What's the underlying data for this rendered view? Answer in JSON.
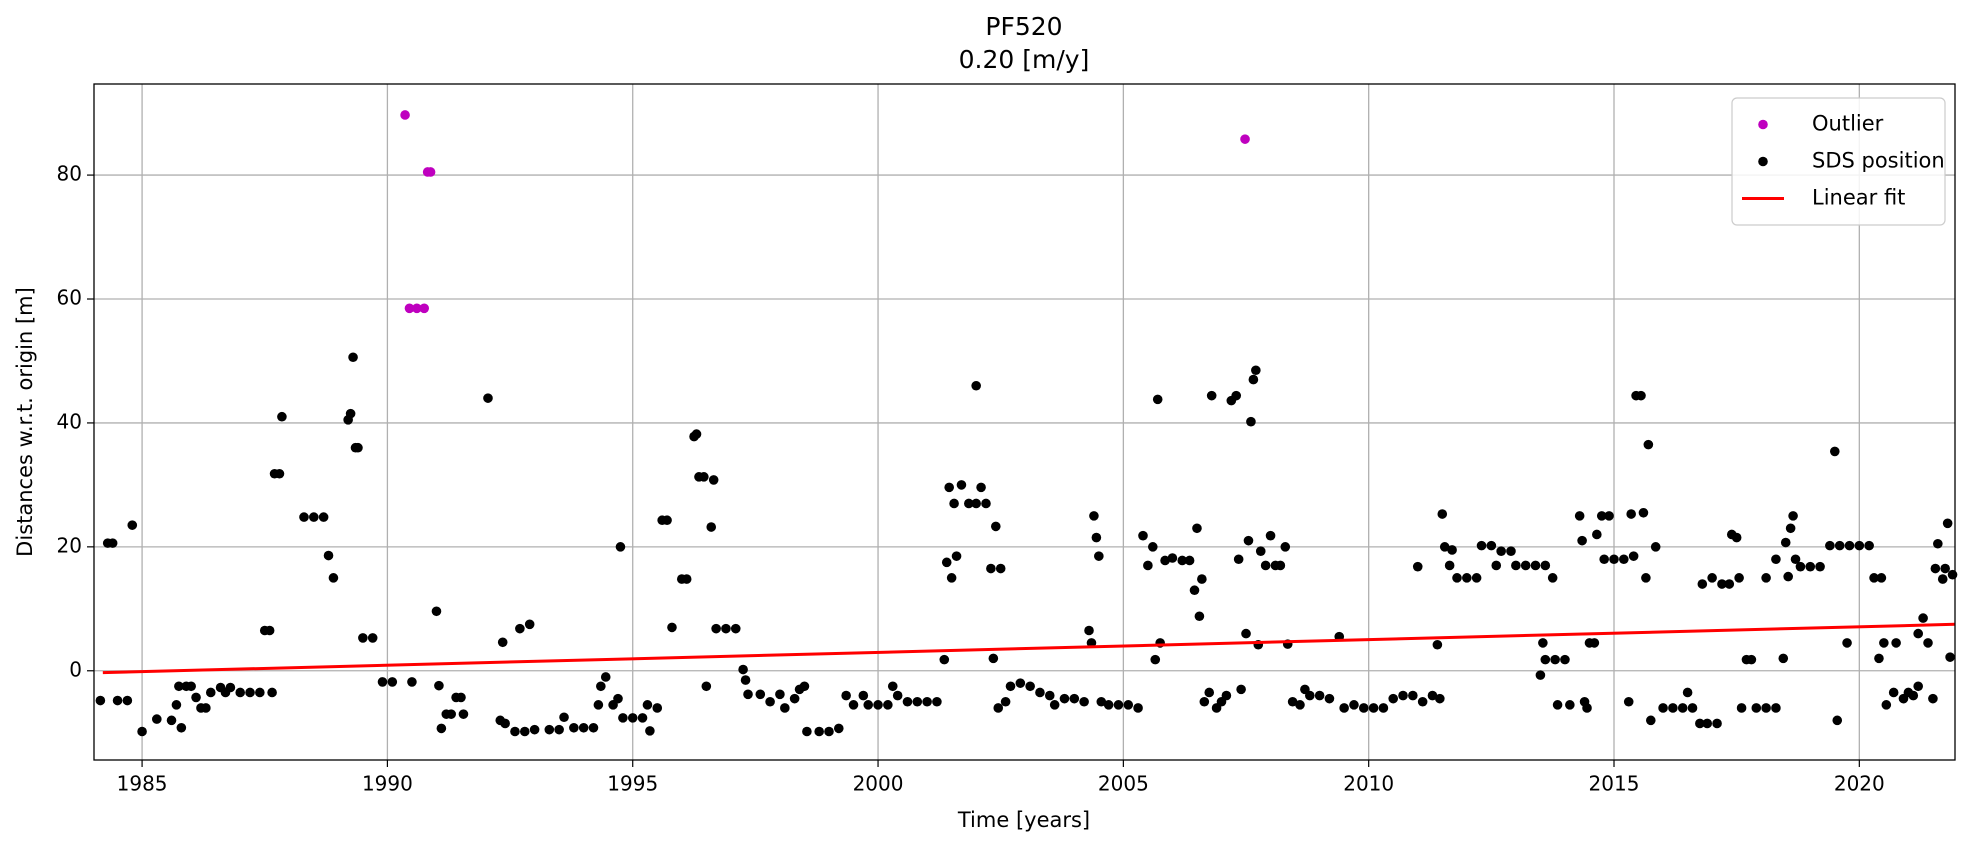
{
  "chart_data": {
    "type": "scatter",
    "title": "PF520",
    "subtitle": "0.20 [m/y]",
    "x_label": "Time [years]",
    "y_label": "Distances w.r.t. origin [m]",
    "xlim": [
      1984.02,
      2021.95
    ],
    "ylim": [
      -14.4,
      94.7
    ],
    "xticks": [
      1985,
      1990,
      1995,
      2000,
      2005,
      2010,
      2015,
      2020
    ],
    "yticks": [
      0,
      20,
      40,
      60,
      80
    ],
    "grid": true,
    "legend": "upper right",
    "series": [
      {
        "name": "Outlier",
        "color": "#bf00bf",
        "mode": "markers",
        "x": [
          1990.36,
          1990.45,
          1990.6,
          1990.75,
          1990.82,
          1990.88,
          2007.48
        ],
        "values": [
          89.7,
          58.5,
          58.5,
          58.5,
          80.5,
          80.5,
          85.8
        ]
      },
      {
        "name": "SDS position",
        "color": "#000000",
        "mode": "markers",
        "x": [
          1984.15,
          1984.3,
          1984.4,
          1984.5,
          1984.7,
          1984.8,
          1985.0,
          1985.3,
          1985.6,
          1985.7,
          1985.75,
          1985.8,
          1985.9,
          1986.0,
          1986.1,
          1986.2,
          1986.3,
          1986.4,
          1986.6,
          1986.7,
          1986.8,
          1987.0,
          1987.2,
          1987.4,
          1987.5,
          1987.6,
          1987.65,
          1987.7,
          1987.8,
          1987.85,
          1988.3,
          1988.5,
          1988.7,
          1988.8,
          1988.9,
          1989.2,
          1989.25,
          1989.3,
          1989.35,
          1989.4,
          1989.5,
          1989.7,
          1989.9,
          1990.1,
          1990.5,
          1991.0,
          1991.05,
          1991.1,
          1991.2,
          1991.3,
          1991.4,
          1991.5,
          1991.55,
          1992.05,
          1992.3,
          1992.35,
          1992.4,
          1992.6,
          1992.7,
          1992.8,
          1992.9,
          1993.0,
          1993.3,
          1993.5,
          1993.6,
          1993.8,
          1994.0,
          1994.2,
          1994.3,
          1994.35,
          1994.45,
          1994.6,
          1994.7,
          1994.75,
          1994.8,
          1995.0,
          1995.2,
          1995.3,
          1995.35,
          1995.5,
          1995.6,
          1995.7,
          1995.8,
          1996.0,
          1996.1,
          1996.25,
          1996.3,
          1996.35,
          1996.45,
          1996.5,
          1996.6,
          1996.65,
          1996.7,
          1996.9,
          1997.1,
          1997.25,
          1997.3,
          1997.35,
          1997.6,
          1997.8,
          1998.0,
          1998.1,
          1998.3,
          1998.4,
          1998.5,
          1998.55,
          1998.8,
          1999.0,
          1999.2,
          1999.35,
          1999.5,
          1999.7,
          1999.8,
          2000.0,
          2000.2,
          2000.3,
          2000.4,
          2000.6,
          2000.8,
          2001.0,
          2001.2,
          2001.35,
          2001.4,
          2001.45,
          2001.5,
          2001.55,
          2001.6,
          2001.7,
          2001.85,
          2002.0,
          2002.0,
          2002.1,
          2002.2,
          2002.3,
          2002.35,
          2002.4,
          2002.45,
          2002.5,
          2002.6,
          2002.7,
          2002.9,
          2003.1,
          2003.3,
          2003.5,
          2003.6,
          2003.8,
          2004.0,
          2004.2,
          2004.3,
          2004.35,
          2004.4,
          2004.45,
          2004.5,
          2004.55,
          2004.7,
          2004.9,
          2005.1,
          2005.3,
          2005.4,
          2005.5,
          2005.6,
          2005.65,
          2005.7,
          2005.75,
          2005.85,
          2006.0,
          2006.2,
          2006.35,
          2006.45,
          2006.5,
          2006.55,
          2006.6,
          2006.65,
          2006.75,
          2006.8,
          2006.9,
          2007.0,
          2007.1,
          2007.2,
          2007.3,
          2007.35,
          2007.4,
          2007.5,
          2007.55,
          2007.6,
          2007.65,
          2007.7,
          2007.75,
          2007.8,
          2007.9,
          2008.0,
          2008.1,
          2008.2,
          2008.3,
          2008.35,
          2008.45,
          2008.6,
          2008.7,
          2008.8,
          2009.0,
          2009.2,
          2009.4,
          2009.5,
          2009.7,
          2009.9,
          2010.1,
          2010.3,
          2010.5,
          2010.7,
          2010.9,
          2011.0,
          2011.1,
          2011.3,
          2011.4,
          2011.45,
          2011.5,
          2011.55,
          2011.65,
          2011.7,
          2011.8,
          2012.0,
          2012.2,
          2012.3,
          2012.5,
          2012.6,
          2012.7,
          2012.9,
          2013.0,
          2013.2,
          2013.4,
          2013.5,
          2013.55,
          2013.6,
          2013.6,
          2013.75,
          2013.8,
          2013.85,
          2014.0,
          2014.1,
          2014.3,
          2014.35,
          2014.4,
          2014.45,
          2014.5,
          2014.6,
          2014.65,
          2014.75,
          2014.8,
          2014.9,
          2015.0,
          2015.2,
          2015.3,
          2015.35,
          2015.4,
          2015.45,
          2015.55,
          2015.6,
          2015.65,
          2015.7,
          2015.75,
          2015.85,
          2016.0,
          2016.2,
          2016.4,
          2016.5,
          2016.6,
          2016.75,
          2016.8,
          2016.9,
          2017.0,
          2017.1,
          2017.2,
          2017.35,
          2017.4,
          2017.5,
          2017.55,
          2017.6,
          2017.7,
          2017.8,
          2017.9,
          2018.1,
          2018.1,
          2018.3,
          2018.3,
          2018.45,
          2018.5,
          2018.55,
          2018.6,
          2018.65,
          2018.7,
          2018.8,
          2019.0,
          2019.2,
          2019.4,
          2019.5,
          2019.55,
          2019.6,
          2019.75,
          2019.8,
          2020.0,
          2020.2,
          2020.3,
          2020.4,
          2020.45,
          2020.5,
          2020.55,
          2020.7,
          2020.75,
          2020.9,
          2021.0,
          2021.1,
          2021.2,
          2021.2,
          2021.3,
          2021.4,
          2021.5,
          2021.55,
          2021.6,
          2021.7,
          2021.75,
          2021.8,
          2021.85,
          2021.9
        ],
        "values": [
          -4.8,
          20.6,
          20.6,
          -4.8,
          -4.8,
          23.5,
          -9.8,
          -7.8,
          -8,
          -5.5,
          -2.5,
          -9.2,
          -2.5,
          -2.5,
          -4.3,
          -6,
          -6,
          -3.5,
          -2.7,
          -3.5,
          -2.7,
          -3.5,
          -3.5,
          -3.5,
          6.5,
          6.5,
          -3.5,
          31.8,
          31.8,
          41,
          24.8,
          24.8,
          24.8,
          18.6,
          15,
          40.5,
          41.5,
          50.6,
          36,
          36,
          5.3,
          5.3,
          -1.8,
          -1.8,
          -1.8,
          9.6,
          -2.4,
          -9.3,
          -7,
          -7,
          -4.3,
          -4.3,
          -7,
          44,
          -8,
          4.6,
          -8.5,
          -9.8,
          6.8,
          -9.8,
          7.5,
          -9.5,
          -9.5,
          -9.5,
          -7.5,
          -9.2,
          -9.2,
          -9.2,
          -5.5,
          -2.5,
          -1,
          -5.5,
          -4.5,
          20,
          -7.6,
          -7.6,
          -7.6,
          -5.5,
          -9.7,
          -6,
          24.3,
          24.3,
          7,
          14.8,
          14.8,
          37.8,
          38.2,
          31.3,
          31.3,
          -2.5,
          23.2,
          30.8,
          6.8,
          6.8,
          6.8,
          0.2,
          -1.5,
          -3.8,
          -3.8,
          -5,
          -3.8,
          -6,
          -4.5,
          -3,
          -2.5,
          -9.8,
          -9.8,
          -9.8,
          -9.3,
          -4,
          -5.5,
          -4,
          -5.5,
          -5.5,
          -5.5,
          -2.5,
          -4,
          -5,
          -5,
          -5,
          -5,
          1.8,
          17.5,
          29.6,
          15,
          27,
          18.5,
          30,
          27,
          27,
          46,
          29.6,
          27,
          16.5,
          2,
          23.3,
          -6,
          16.5,
          -5,
          -2.5,
          -2,
          -2.5,
          -3.5,
          -4,
          -5.5,
          -4.5,
          -4.5,
          -5,
          6.5,
          4.5,
          25,
          21.5,
          18.5,
          -5,
          -5.5,
          -5.5,
          -5.5,
          -6,
          21.8,
          17,
          20,
          1.8,
          43.8,
          4.5,
          17.8,
          18.2,
          17.8,
          17.8,
          13,
          23,
          8.8,
          14.8,
          -5,
          -3.5,
          44.4,
          -6,
          -5,
          -4,
          43.6,
          44.4,
          18,
          -3,
          6,
          21,
          40.2,
          47,
          48.5,
          4.2,
          19.3,
          17,
          21.8,
          17,
          17,
          20,
          4.3,
          -5,
          -5.5,
          -3,
          -4,
          -4,
          -4.5,
          5.5,
          -6,
          -5.5,
          -6,
          -6,
          -6,
          -4.5,
          -4,
          -4,
          16.8,
          -5,
          -4,
          4.2,
          -4.5,
          25.3,
          20,
          17,
          19.5,
          15,
          15,
          15,
          20.2,
          20.2,
          17,
          19.3,
          19.3,
          17,
          17,
          17,
          -0.7,
          4.5,
          1.8,
          17,
          15,
          1.8,
          -5.5,
          1.8,
          -5.5,
          25,
          21,
          -5,
          -6,
          4.5,
          4.5,
          22,
          25,
          18,
          25,
          18,
          18,
          -5,
          25.3,
          18.5,
          44.4,
          44.4,
          25.5,
          15,
          36.5,
          -8,
          20,
          -6,
          -6,
          -6,
          -3.5,
          -6,
          -8.5,
          14,
          -8.5,
          15,
          -8.5,
          14,
          14,
          22,
          21.5,
          15,
          -6,
          1.8,
          1.8,
          -6,
          -6,
          15,
          -6,
          18,
          2,
          20.7,
          15.2,
          23,
          25,
          18,
          16.8,
          16.8,
          16.8,
          20.2,
          35.4,
          -8,
          20.2,
          4.5,
          20.2,
          20.2,
          20.2,
          15,
          2,
          15,
          4.5,
          -5.5,
          -3.5,
          4.5,
          -4.5,
          -3.5,
          -4,
          -2.5,
          6,
          8.5,
          4.5,
          -4.5,
          16.5,
          20.5,
          14.8,
          16.5,
          23.8,
          2.2,
          15.5
        ]
      },
      {
        "name": "Linear fit",
        "color": "#ff0000",
        "mode": "line",
        "x": [
          1984.2,
          2021.95
        ],
        "values": [
          -0.3,
          7.5
        ]
      }
    ]
  }
}
